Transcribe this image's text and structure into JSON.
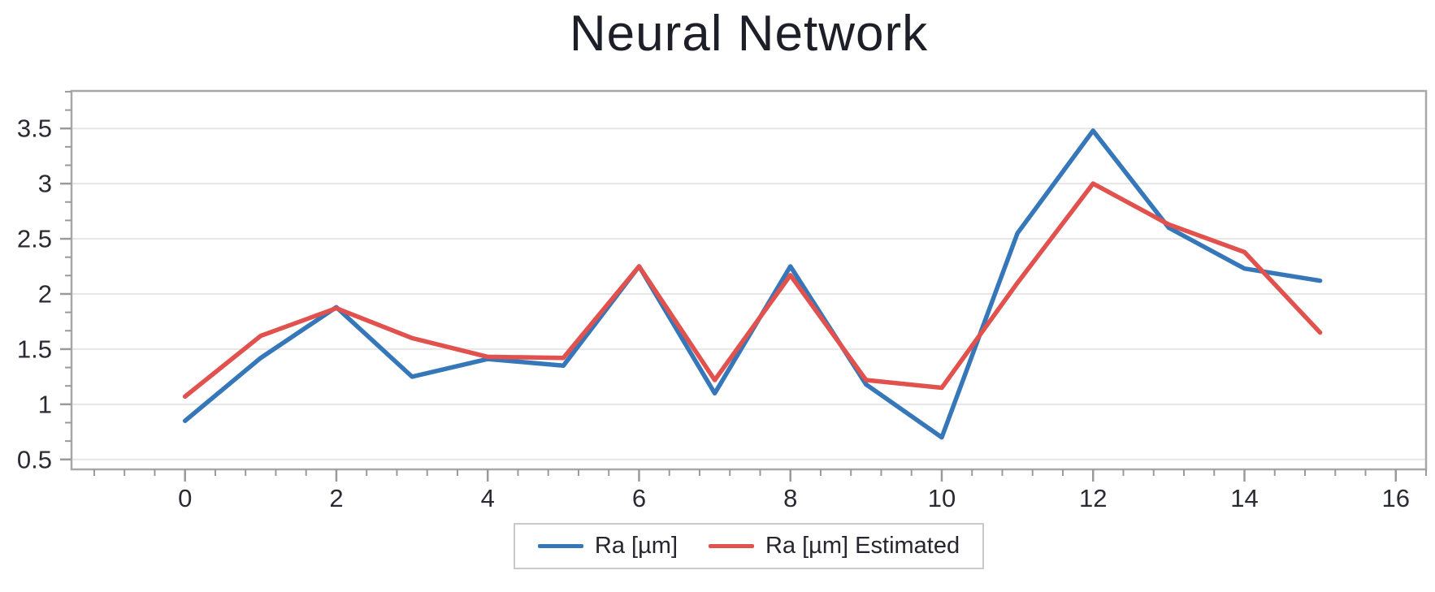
{
  "chart_data": {
    "type": "line",
    "title": "Neural Network",
    "xlabel": "",
    "ylabel": "",
    "x": [
      0,
      1,
      2,
      3,
      4,
      5,
      6,
      7,
      8,
      9,
      10,
      11,
      12,
      13,
      14,
      15
    ],
    "series": [
      {
        "name": "Ra [µm]",
        "color": "#3577b8",
        "values": [
          0.85,
          1.42,
          1.88,
          1.25,
          1.41,
          1.35,
          2.25,
          1.1,
          2.25,
          1.18,
          0.7,
          2.55,
          3.48,
          2.6,
          2.23,
          2.12
        ]
      },
      {
        "name": "Ra [µm] Estimated",
        "color": "#e1514d",
        "values": [
          1.07,
          1.62,
          1.87,
          1.6,
          1.43,
          1.42,
          2.25,
          1.22,
          2.17,
          1.22,
          1.15,
          2.1,
          3.0,
          2.63,
          2.38,
          1.65
        ]
      }
    ],
    "xlim": [
      -1.5,
      16.4
    ],
    "ylim": [
      0.41,
      3.84
    ],
    "x_ticks": [
      0,
      2,
      4,
      6,
      8,
      10,
      12,
      14,
      16
    ],
    "x_minor_step": 0.4,
    "y_ticks": [
      0.5,
      1,
      1.5,
      2,
      2.5,
      3,
      3.5
    ],
    "y_minor_count_between": 2,
    "grid": "horizontal-only",
    "legend_position": "bottom-center",
    "colors": {
      "frame": "#a8a8a8",
      "tick": "#9a9a9a",
      "gridline": "#e6e6e6",
      "tick_label": "#2a2a33",
      "title": "#1e1e28"
    }
  }
}
